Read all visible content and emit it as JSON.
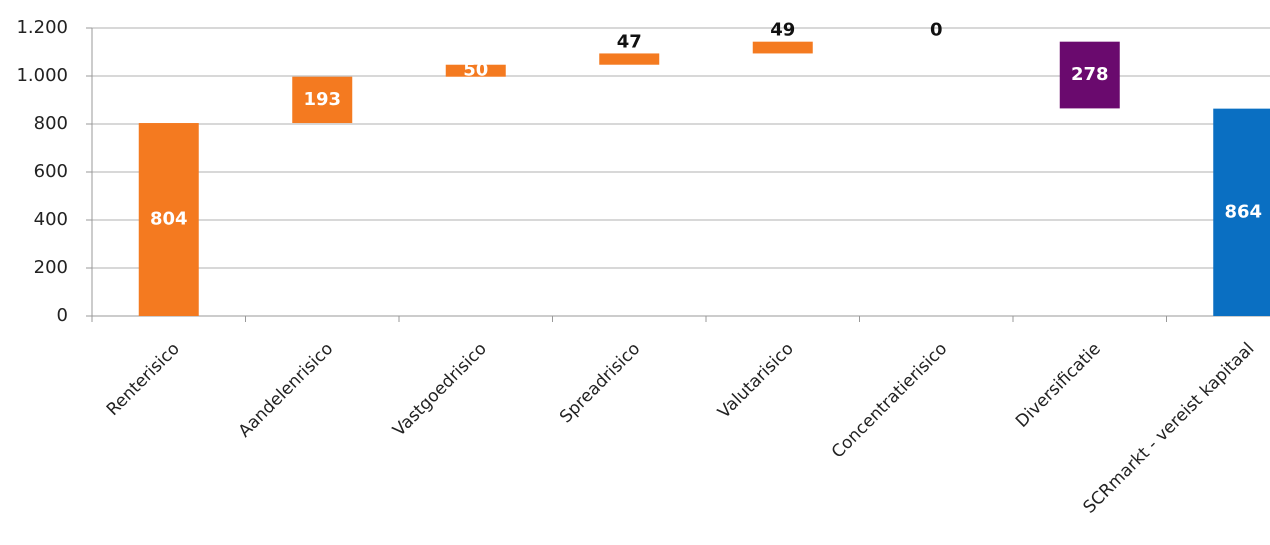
{
  "chart_data": {
    "type": "waterfall",
    "categories": [
      "Renterisico",
      "Aandelenrisico",
      "Vastgoedrisico",
      "Spreadrisico",
      "Valutarisico",
      "Concentratierisico",
      "Diversificatie",
      "SCRmarkt - vereist kapitaal"
    ],
    "values": [
      804,
      193,
      50,
      47,
      49,
      0,
      278,
      864
    ],
    "kinds": [
      "increase",
      "increase",
      "increase",
      "increase",
      "increase",
      "increase",
      "decrease",
      "total"
    ],
    "colors": [
      "#f47a20",
      "#f47a20",
      "#f47a20",
      "#f47a20",
      "#f47a20",
      "#f47a20",
      "#6a0a6e",
      "#0a6fc2"
    ],
    "ylim": [
      0,
      1200
    ],
    "yticks": [
      0,
      200,
      400,
      600,
      800,
      {
        "value": 1000,
        "label": "1.000"
      },
      {
        "value": 1200,
        "label": "1.200"
      }
    ],
    "grid": true
  }
}
